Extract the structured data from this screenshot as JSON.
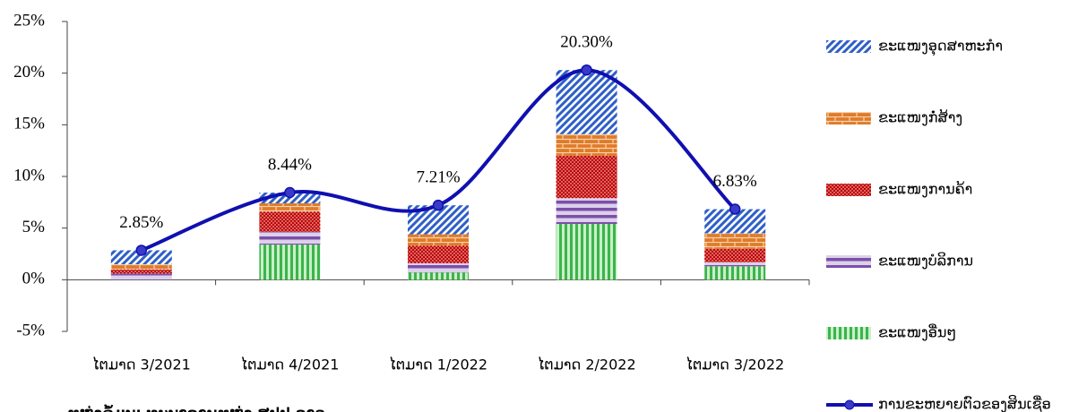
{
  "chart_data": {
    "type": "bar",
    "categories": [
      "ໄຕມາດ 3/2021",
      "ໄຕມາດ 4/2021",
      "ໄຕມາດ 1/2022",
      "ໄຕມາດ 2/2022",
      "ໄຕມາດ 3/2022"
    ],
    "series": [
      {
        "name": "ຂະແໜງອຸດສາຫະກຳ",
        "color": "#2e5fc7",
        "values": [
          1.35,
          1.04,
          2.81,
          6.2,
          2.33
        ]
      },
      {
        "name": "ຂະແໜງກໍ່ສ້າງ",
        "color": "#e07b28",
        "values": [
          0.5,
          0.8,
          1.1,
          2.1,
          1.5
        ]
      },
      {
        "name": "ຂະແໜງການຄ້າ",
        "color": "#c00000",
        "values": [
          0.4,
          1.95,
          1.7,
          4.1,
          1.3
        ]
      },
      {
        "name": "ຂະແໜງບໍລິການ",
        "color": "#7b4fa8",
        "values": [
          0.6,
          1.25,
          0.9,
          2.5,
          0.4
        ]
      },
      {
        "name": "ຂະແໜງອື່ນໆ",
        "color": "#3cb44b",
        "values": [
          0,
          3.4,
          0.7,
          5.4,
          1.3
        ]
      },
      {
        "name": "ການຂະຫຍາຍຕົວຂອງສິນເຊື່ອ",
        "color": "#1010b0",
        "type": "line",
        "values": [
          2.85,
          8.44,
          7.21,
          20.3,
          6.83
        ],
        "value_labels": [
          "2.85%",
          "8.44%",
          "7.21%",
          "20.30%",
          "6.83%"
        ]
      }
    ],
    "ylim": [
      -5,
      25
    ],
    "yticks": [
      {
        "value": -5,
        "label": "-5%"
      },
      {
        "value": 0,
        "label": "0%"
      },
      {
        "value": 5,
        "label": "5%"
      },
      {
        "value": 10,
        "label": "10%"
      },
      {
        "value": 15,
        "label": "15%"
      },
      {
        "value": 20,
        "label": "20%"
      },
      {
        "value": 25,
        "label": "25%"
      }
    ],
    "source": "ແຫຼ່ງຂໍ້ມູນ: ທະນາຄານແຫ່ງ ສປປ ລາວ"
  }
}
